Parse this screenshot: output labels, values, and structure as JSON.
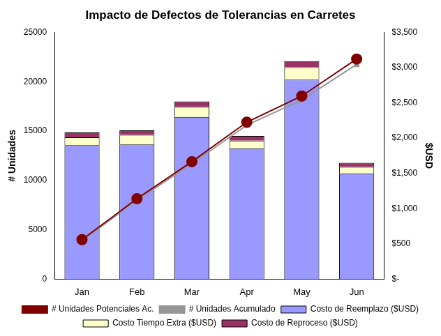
{
  "chart_data": {
    "type": "bar",
    "title": "Impacto de Defectos de Tolerancias en Carretes",
    "categories": [
      "Jan",
      "Feb",
      "Mar",
      "Apr",
      "May",
      "Jun"
    ],
    "ylabel": "# Unidades",
    "y2label": "$USD",
    "ylim": [
      0,
      25000
    ],
    "yticks": [
      0,
      5000,
      10000,
      15000,
      20000,
      25000
    ],
    "y2lim": [
      0,
      3500
    ],
    "y2ticks": [
      {
        "value": 0,
        "label": "$-"
      },
      {
        "value": 500,
        "label": "$500"
      },
      {
        "value": 1000,
        "label": "$1,000"
      },
      {
        "value": 1500,
        "label": "$1,500"
      },
      {
        "value": 2000,
        "label": "$2,000"
      },
      {
        "value": 2500,
        "label": "$2,500"
      },
      {
        "value": 3000,
        "label": "$3,000"
      },
      {
        "value": 3500,
        "label": "$3,500"
      }
    ],
    "stacked": true,
    "grid": false,
    "legend": "bottom",
    "series": [
      {
        "name": "Costo de Reemplazo ($USD)",
        "type": "bar",
        "axis": "y2",
        "color": "#9999ff",
        "values": [
          1900,
          1910,
          2300,
          1855,
          2830,
          1500
        ]
      },
      {
        "name": "Costo Tiempo Extra ($USD)",
        "type": "bar",
        "axis": "y2",
        "color": "#ffffcc",
        "values": [
          110,
          135,
          140,
          110,
          175,
          90
        ]
      },
      {
        "name": "Costo de Reproceso ($USD)",
        "type": "bar",
        "axis": "y2",
        "color": "#993366",
        "values": [
          70,
          65,
          80,
          65,
          85,
          60
        ]
      },
      {
        "name": "# Unidades Acumulado",
        "type": "line",
        "color": "#969696",
        "marker": "square",
        "line_style": "solid",
        "values": [
          3900,
          8000,
          11700,
          15600,
          18150,
          21750
        ]
      },
      {
        "name": "# Unidades Potenciales Ac.",
        "type": "line",
        "color": "#800000",
        "marker": "circle",
        "line_style": "solid",
        "values": [
          4000,
          8150,
          11900,
          15900,
          18550,
          22300
        ]
      }
    ]
  }
}
